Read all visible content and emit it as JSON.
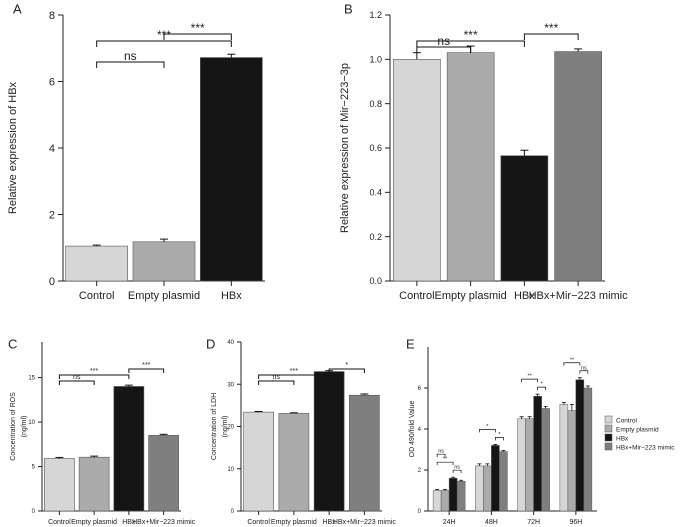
{
  "colors": {
    "control": "#d6d6d6",
    "empty_plasmid": "#ababab",
    "hbx": "#151515",
    "hbx_mir_mimic": "#7f7f7f",
    "axis": "#222222"
  },
  "chart_data": [
    {
      "panel": "A",
      "type": "bar",
      "categories": [
        "Control",
        "Empty plasmid",
        "HBx"
      ],
      "values": [
        1.05,
        1.18,
        6.72
      ],
      "errors": [
        0.03,
        0.08,
        0.1
      ],
      "ylabel": "Relative expression of HBx",
      "xlabel": "",
      "ylim": [
        0,
        8
      ],
      "yticks": [
        "0",
        "2",
        "4",
        "6",
        "8"
      ],
      "comparisons": [
        {
          "from": 1,
          "to": 2,
          "label": "***"
        },
        {
          "from": 0,
          "to": 2,
          "label": "***"
        },
        {
          "from": 0,
          "to": 1,
          "label": "ns"
        }
      ]
    },
    {
      "panel": "B",
      "type": "bar",
      "categories": [
        "Control",
        "Empty plasmid",
        "HBx",
        "HBx+Mir−223 mimic"
      ],
      "values": [
        1.0,
        1.03,
        0.565,
        1.035
      ],
      "errors": [
        0.03,
        0.03,
        0.025,
        0.012
      ],
      "ylabel": "Relative expression of Mir−223−3p",
      "xlabel": "",
      "ylim": [
        0,
        1.2
      ],
      "yticks": [
        "0.0",
        "0.2",
        "0.4",
        "0.6",
        "0.8",
        "1.0",
        "1.2"
      ],
      "comparisons": [
        {
          "from": 0,
          "to": 1,
          "label": "ns"
        },
        {
          "from": 0,
          "to": 2,
          "label": "***"
        },
        {
          "from": 2,
          "to": 3,
          "label": "***"
        }
      ]
    },
    {
      "panel": "C",
      "type": "bar",
      "categories": [
        "Control",
        "Empty plasmid",
        "HBx",
        "HBx+Mir−223 mimic"
      ],
      "values": [
        5.9,
        6.05,
        14.0,
        8.5
      ],
      "errors": [
        0.12,
        0.12,
        0.15,
        0.12
      ],
      "ylabel": "Concentration of ROS\n(ng/ml)",
      "xlabel": "",
      "ylim": [
        0,
        19
      ],
      "yticks": [
        "0",
        "5",
        "10",
        "15"
      ],
      "comparisons": [
        {
          "from": 0,
          "to": 1,
          "label": "ns"
        },
        {
          "from": 0,
          "to": 2,
          "label": "***"
        },
        {
          "from": 2,
          "to": 3,
          "label": "***"
        }
      ]
    },
    {
      "panel": "D",
      "type": "bar",
      "categories": [
        "Control",
        "Empty plasmid",
        "HBx",
        "HBx+Mir−223 mimic"
      ],
      "values": [
        23.4,
        23.1,
        33.0,
        27.4
      ],
      "errors": [
        0.15,
        0.15,
        0.2,
        0.3
      ],
      "ylabel": "Concentration of LDH\n(ng/ml)",
      "xlabel": "",
      "ylim": [
        0,
        40
      ],
      "yticks": [
        "0",
        "10",
        "20",
        "30",
        "40"
      ],
      "comparisons": [
        {
          "from": 0,
          "to": 1,
          "label": "ns"
        },
        {
          "from": 0,
          "to": 2,
          "label": "***"
        },
        {
          "from": 2,
          "to": 3,
          "label": "*"
        }
      ]
    },
    {
      "panel": "E",
      "type": "bar",
      "categories": [
        "24H",
        "48H",
        "72H",
        "96H"
      ],
      "series": [
        {
          "name": "Control",
          "values": [
            1.0,
            2.2,
            4.5,
            5.2
          ],
          "errors": [
            0.05,
            0.1,
            0.1,
            0.1
          ]
        },
        {
          "name": "Empty plasmid",
          "values": [
            1.0,
            2.2,
            4.5,
            4.9
          ],
          "errors": [
            0.05,
            0.1,
            0.1,
            0.3
          ]
        },
        {
          "name": "HBx",
          "values": [
            1.6,
            3.2,
            5.6,
            6.4
          ],
          "errors": [
            0.05,
            0.05,
            0.1,
            0.1
          ]
        },
        {
          "name": "HBx+Mir−223 mimic",
          "values": [
            1.45,
            2.9,
            5.0,
            6.0
          ],
          "errors": [
            0.05,
            0.05,
            0.1,
            0.1
          ]
        }
      ],
      "ylabel": "OD 490/fold Value",
      "xlabel": "",
      "ylim": [
        0,
        8
      ],
      "yticks": [
        "0",
        "2",
        "4",
        "6"
      ],
      "legend_position": "right",
      "comparisons": [
        {
          "group": 0,
          "pairs": [
            {
              "from": 0,
              "to": 1,
              "label": "ns"
            },
            {
              "from": 0,
              "to": 2,
              "label": "**"
            },
            {
              "from": 2,
              "to": 3,
              "label": "ns"
            }
          ]
        },
        {
          "group": 1,
          "pairs": [
            {
              "from": 0,
              "to": 2,
              "label": "*"
            },
            {
              "from": 2,
              "to": 3,
              "label": "*"
            }
          ]
        },
        {
          "group": 2,
          "pairs": [
            {
              "from": 0,
              "to": 2,
              "label": "**"
            },
            {
              "from": 2,
              "to": 3,
              "label": "*"
            }
          ]
        },
        {
          "group": 3,
          "pairs": [
            {
              "from": 0,
              "to": 2,
              "label": "**"
            },
            {
              "from": 2,
              "to": 3,
              "label": "ns"
            }
          ]
        }
      ]
    }
  ]
}
